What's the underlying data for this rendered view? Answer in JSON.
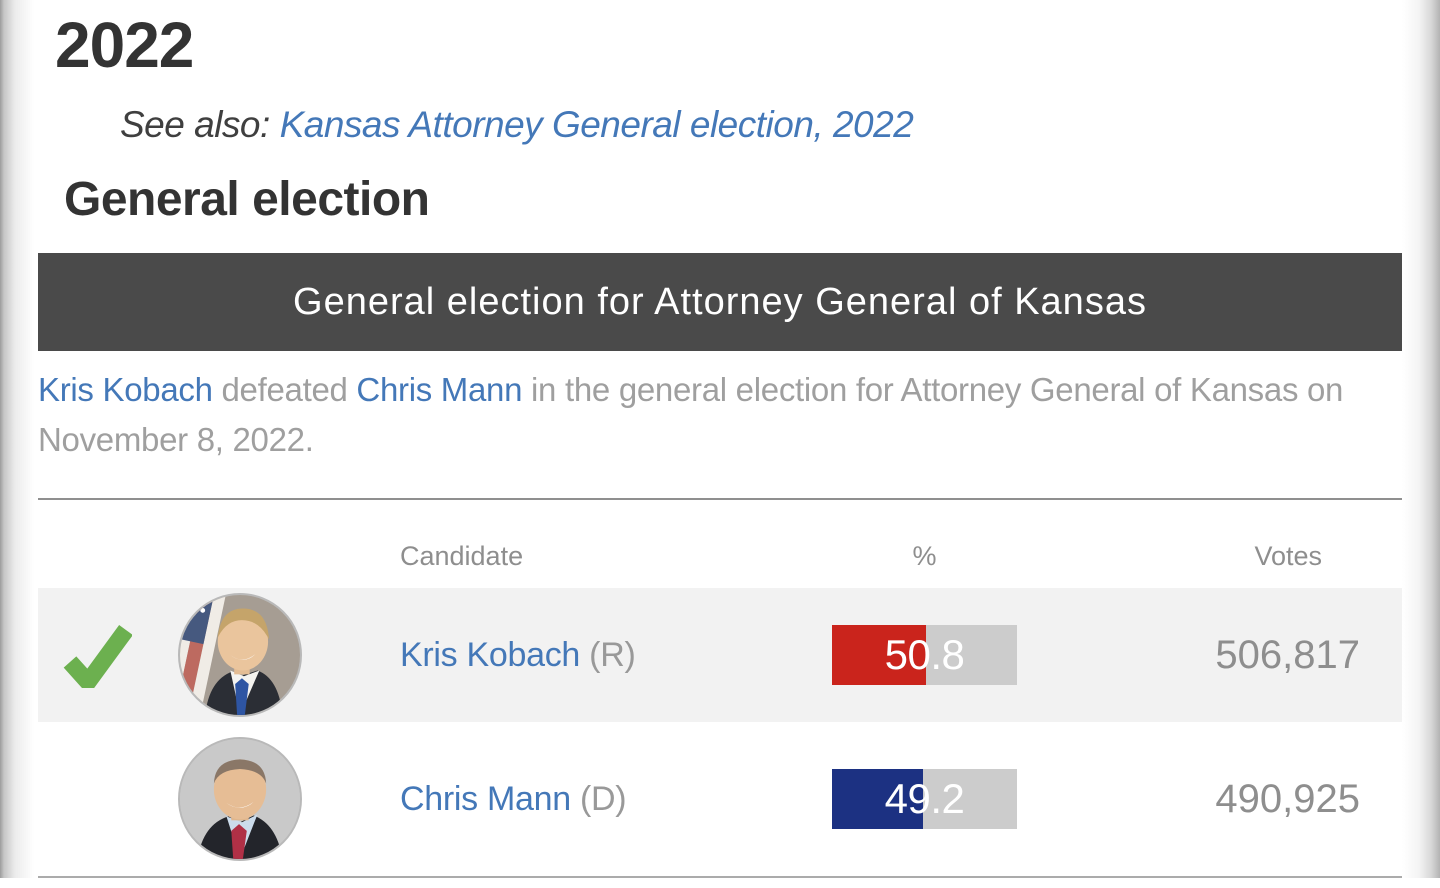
{
  "page": {
    "year_heading": "2022",
    "see_also_label": "See also:",
    "see_also_link": "Kansas Attorney General election, 2022",
    "section_heading": "General election",
    "banner_title": "General election for Attorney General of Kansas",
    "summary": {
      "winner_link": "Kris Kobach",
      "middle_text": " defeated ",
      "loser_link": "Chris Mann",
      "rest_text": " in the general election for Attorney General of Kansas on November 8, 2022."
    }
  },
  "results_table": {
    "columns": {
      "candidate": "Candidate",
      "percent": "%",
      "votes": "Votes"
    },
    "rows": [
      {
        "winner": true,
        "name": "Kris Kobach",
        "party": "(R)",
        "percent_label": "50.8",
        "percent_value": 50.8,
        "votes": "506,817",
        "bar_color": "#ca241c",
        "photo_icon": "kris-kobach-photo"
      },
      {
        "winner": false,
        "name": "Chris Mann",
        "party": "(D)",
        "percent_label": "49.2",
        "percent_value": 49.2,
        "votes": "490,925",
        "bar_color": "#1c3182",
        "photo_icon": "chris-mann-photo"
      }
    ]
  },
  "colors": {
    "link_blue": "#4478b8",
    "banner_bg": "#4a4a4a",
    "heading_dark": "#333333",
    "body_gray": "#9f9f9f",
    "muted_gray": "#8e8e8e",
    "bar_track": "#cccccc",
    "row_gray": "#f2f2f2",
    "winner_red": "#ca241c",
    "loser_navy": "#1c3182",
    "check_green": "#6cb04f",
    "rule_gray": "#8f8f8f"
  }
}
